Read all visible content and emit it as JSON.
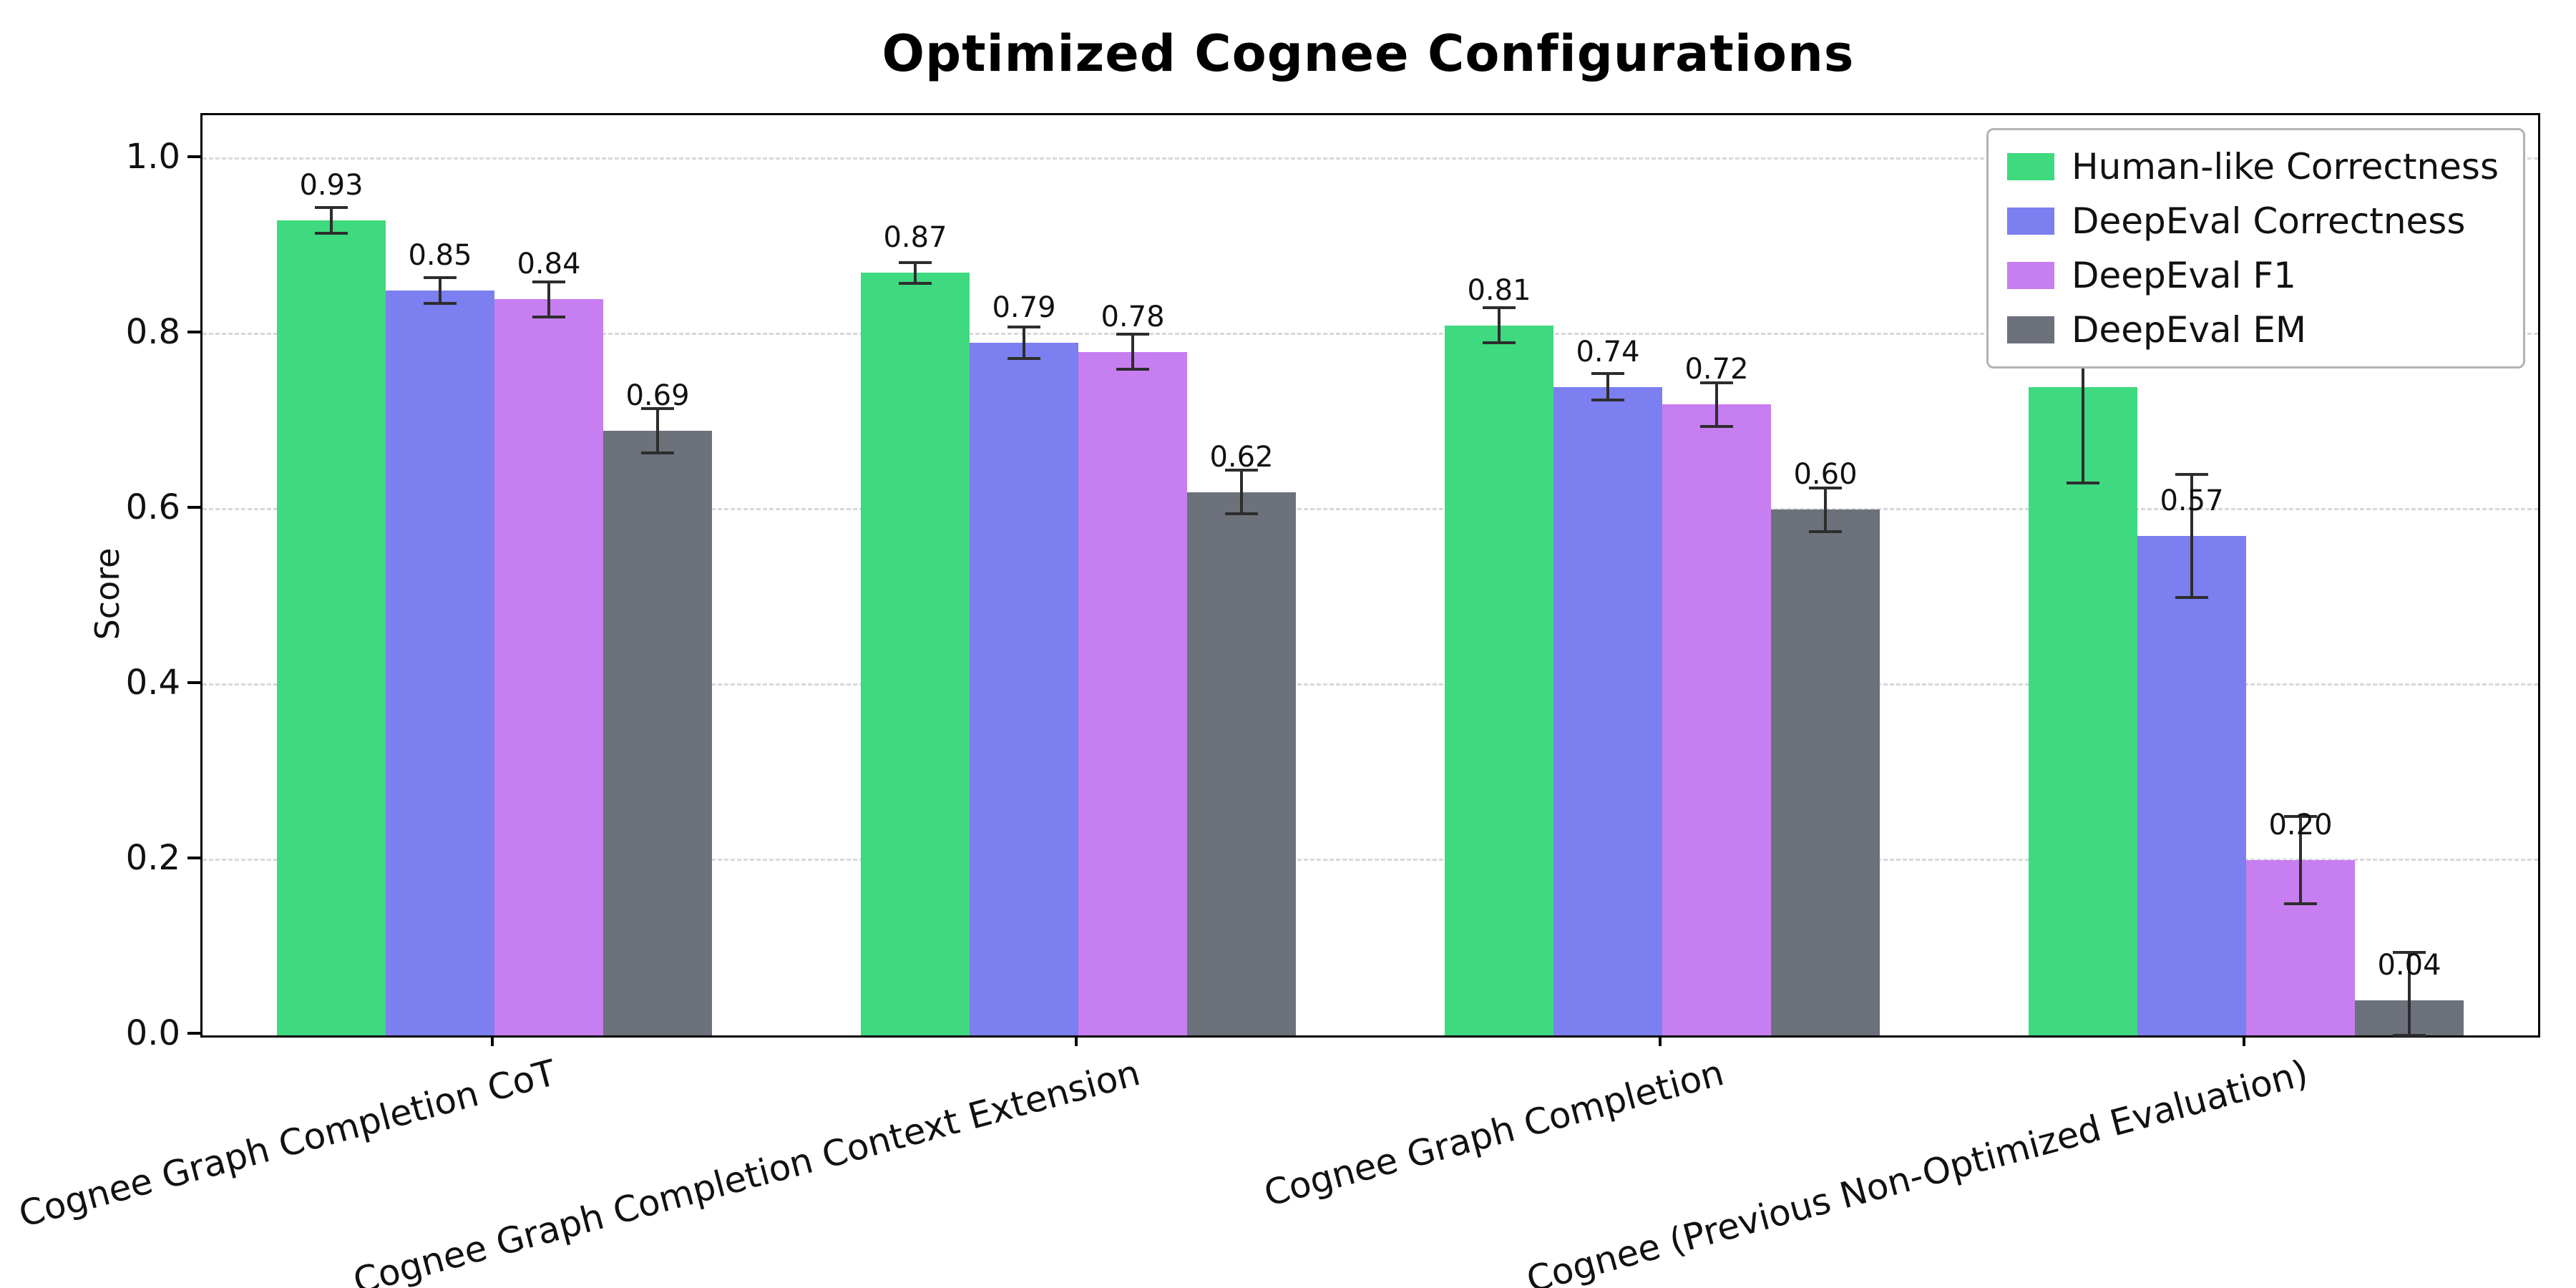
{
  "title": "Optimized Cognee Configurations",
  "chart_data": {
    "type": "bar",
    "title": "Optimized Cognee Configurations",
    "xlabel": "",
    "ylabel": "Score",
    "ylim": [
      0,
      1.05
    ],
    "yticks": [
      0.0,
      0.2,
      0.4,
      0.6,
      0.8,
      1.0
    ],
    "grid": "horizontal-dashed",
    "legend_position": "upper-right",
    "value_labels": true,
    "error_bars": true,
    "categories": [
      "Cognee Graph Completion CoT",
      "Cognee Graph Completion Context Extension",
      "Cognee Graph Completion",
      "Cognee (Previous Non-Optimized Evaluation)"
    ],
    "series": [
      {
        "name": "Human-like Correctness",
        "color": "#3fd97f",
        "values": [
          0.93,
          0.87,
          0.81,
          0.74
        ],
        "errors": [
          0.015,
          0.012,
          0.02,
          0.11
        ]
      },
      {
        "name": "DeepEval Correctness",
        "color": "#7b7ff0",
        "values": [
          0.85,
          0.79,
          0.74,
          0.57
        ],
        "errors": [
          0.015,
          0.018,
          0.015,
          0.07
        ]
      },
      {
        "name": "DeepEval F1",
        "color": "#c77ef0",
        "values": [
          0.84,
          0.78,
          0.72,
          0.2
        ],
        "errors": [
          0.02,
          0.02,
          0.025,
          0.05
        ]
      },
      {
        "name": "DeepEval EM",
        "color": "#6c717c",
        "values": [
          0.69,
          0.62,
          0.6,
          0.04
        ],
        "errors": [
          0.025,
          0.025,
          0.025,
          0.055
        ]
      }
    ]
  }
}
